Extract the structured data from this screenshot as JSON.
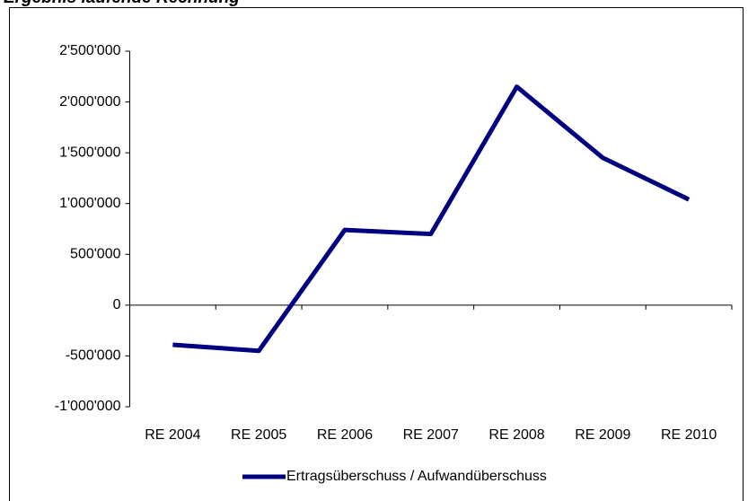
{
  "chart_data": {
    "type": "line",
    "title": "Ergebnis laufende Rechnung",
    "categories": [
      "RE 2004",
      "RE 2005",
      "RE 2006",
      "RE 2007",
      "RE 2008",
      "RE 2009",
      "RE 2010"
    ],
    "series": [
      {
        "name": "Ertragsüberschuss / Aufwandüberschuss",
        "color": "#000080",
        "values": [
          -390000,
          -450000,
          740000,
          700000,
          2150000,
          1450000,
          1040000
        ]
      }
    ],
    "ylim": [
      -1000000,
      2500000
    ],
    "yticks": [
      {
        "value": -1000000,
        "label": "-1'000'000"
      },
      {
        "value": -500000,
        "label": "-500'000"
      },
      0,
      {
        "value": 500000,
        "label": "500'000"
      },
      {
        "value": 1000000,
        "label": "1'000'000"
      },
      {
        "value": 1500000,
        "label": "1'500'000"
      },
      {
        "value": 2000000,
        "label": "2'000'000"
      },
      {
        "value": 2500000,
        "label": "2'500'000"
      }
    ],
    "grid": false,
    "legend": "bottom"
  }
}
